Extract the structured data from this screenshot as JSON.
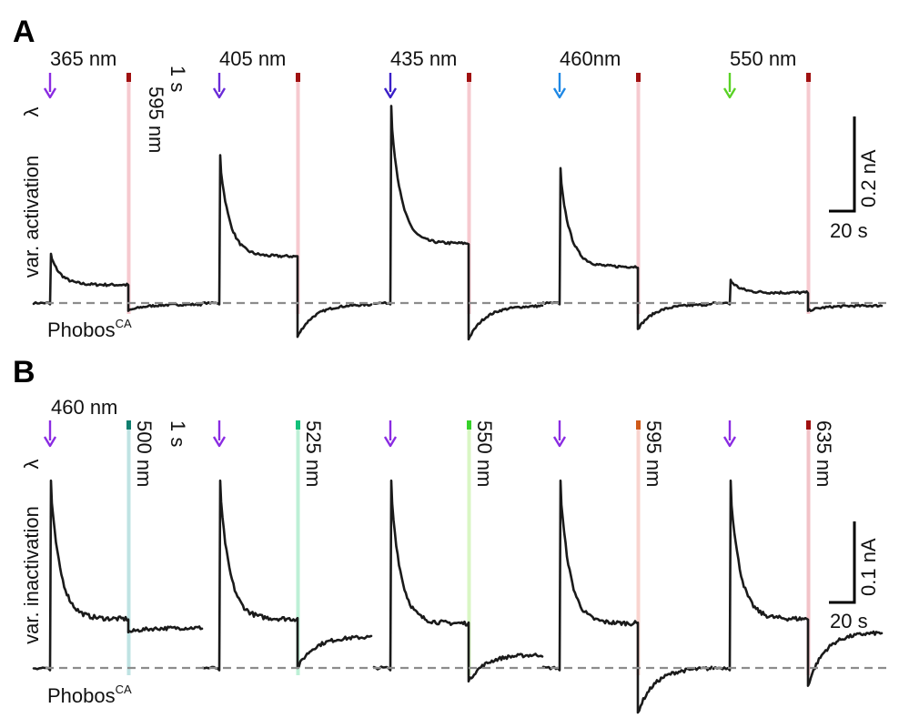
{
  "panels": [
    {
      "letter": "A",
      "ylabel": "var. activation",
      "lambda_symbol": "λ",
      "construct": {
        "base": "Phobos",
        "sup": "CA"
      },
      "pulse_label": "595 nm",
      "duration_label": "1 s",
      "scale": {
        "y_label": "0.2 nA",
        "x_label": "20 s"
      },
      "sweeps": [
        {
          "label": "365 nm",
          "arrow_color": "#8a2be2",
          "bar_color": "#f6c9cf",
          "tick_color": "#a01010",
          "peak": 0.19,
          "plateau": 0.07,
          "undershoot": -0.03,
          "recovery": -0.005
        },
        {
          "label": "405 nm",
          "arrow_color": "#6a2bd8",
          "bar_color": "#f6c9cf",
          "tick_color": "#a01010",
          "peak": 0.57,
          "plateau": 0.18,
          "undershoot": -0.13,
          "recovery": -0.005
        },
        {
          "label": "435 nm",
          "arrow_color": "#3a1fc8",
          "bar_color": "#f6c9cf",
          "tick_color": "#a01010",
          "peak": 0.76,
          "plateau": 0.23,
          "undershoot": -0.14,
          "recovery": -0.01
        },
        {
          "label": "460nm",
          "arrow_color": "#1e88e5",
          "bar_color": "#f6c9cf",
          "tick_color": "#a01010",
          "peak": 0.52,
          "plateau": 0.14,
          "undershoot": -0.1,
          "recovery": -0.005
        },
        {
          "label": "550 nm",
          "arrow_color": "#5ad226",
          "bar_color": "#f6c9cf",
          "tick_color": "#a01010",
          "peak": 0.09,
          "plateau": 0.04,
          "undershoot": -0.03,
          "recovery": -0.01
        }
      ]
    },
    {
      "letter": "B",
      "ylabel": "var. inactivation",
      "lambda_symbol": "λ",
      "construct": {
        "base": "Phobos",
        "sup": "CA"
      },
      "activation_label": "460 nm",
      "duration_label": "1 s",
      "scale": {
        "y_label": "0.1 nA",
        "x_label": "20 s"
      },
      "sweeps": [
        {
          "label": "500 nm",
          "arrow_color": "#8a2be2",
          "bar_color": "#bfe3e3",
          "tick_color": "#0f7f6f",
          "peak": 0.42,
          "plateau": 0.11,
          "undershoot": 0.08,
          "recovery": 0.09
        },
        {
          "label": "525 nm",
          "arrow_color": "#8a2be2",
          "bar_color": "#bdf0d6",
          "tick_color": "#12c07a",
          "peak": 0.42,
          "plateau": 0.11,
          "undershoot": 0.0,
          "recovery": 0.07
        },
        {
          "label": "550 nm",
          "arrow_color": "#8a2be2",
          "bar_color": "#d9f6c4",
          "tick_color": "#36d22a",
          "peak": 0.42,
          "plateau": 0.1,
          "undershoot": -0.03,
          "recovery": 0.03
        },
        {
          "label": "595 nm",
          "arrow_color": "#8a2be2",
          "bar_color": "#f9d4cf",
          "tick_color": "#cf5a1a",
          "peak": 0.42,
          "plateau": 0.1,
          "undershoot": -0.1,
          "recovery": 0.0
        },
        {
          "label": "635 nm",
          "arrow_color": "#8a2be2",
          "bar_color": "#f2c3c8",
          "tick_color": "#a01010",
          "peak": 0.42,
          "plateau": 0.11,
          "undershoot": -0.04,
          "recovery": 0.08
        }
      ]
    }
  ]
}
